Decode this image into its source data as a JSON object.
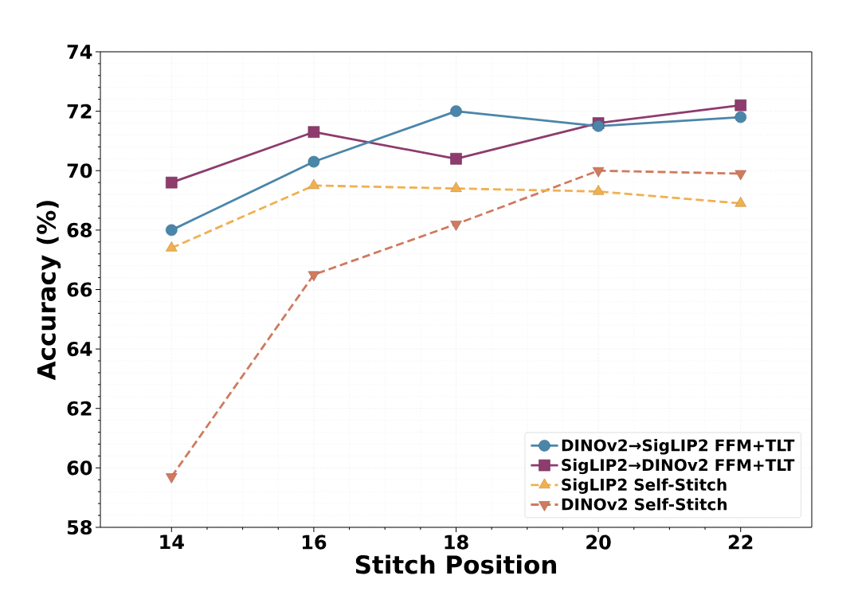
{
  "chart_data": {
    "type": "line",
    "xlabel": "Stitch Position",
    "ylabel": "Accuracy (%)",
    "x": [
      14,
      16,
      18,
      20,
      22
    ],
    "xlim": [
      13,
      23
    ],
    "xticks": [
      14,
      16,
      18,
      20,
      22
    ],
    "ylim": [
      58,
      74
    ],
    "yticks": [
      58,
      60,
      62,
      64,
      66,
      68,
      70,
      72,
      74
    ],
    "grid": true,
    "legend": "bottom right",
    "series": [
      {
        "name": "DINOv2→SigLIP2 FFM+TLT",
        "color": "#4a86aa",
        "marker": "circle",
        "line_style": "solid",
        "values": [
          68.0,
          70.3,
          72.0,
          71.5,
          71.8
        ]
      },
      {
        "name": "SigLIP2→DINOv2 FFM+TLT",
        "color": "#8e3b6e",
        "marker": "square",
        "line_style": "solid",
        "values": [
          69.6,
          71.3,
          70.4,
          71.6,
          72.2
        ]
      },
      {
        "name": "SigLIP2 Self-Stitch",
        "color": "#f0b050",
        "marker": "triangle",
        "line_style": "dashed",
        "values": [
          67.4,
          69.5,
          69.4,
          69.3,
          68.9
        ]
      },
      {
        "name": "DINOv2 Self-Stitch",
        "color": "#d07a5e",
        "marker": "triangle_down",
        "line_style": "dashed",
        "values": [
          59.7,
          66.5,
          68.2,
          70.0,
          69.9
        ]
      }
    ]
  }
}
